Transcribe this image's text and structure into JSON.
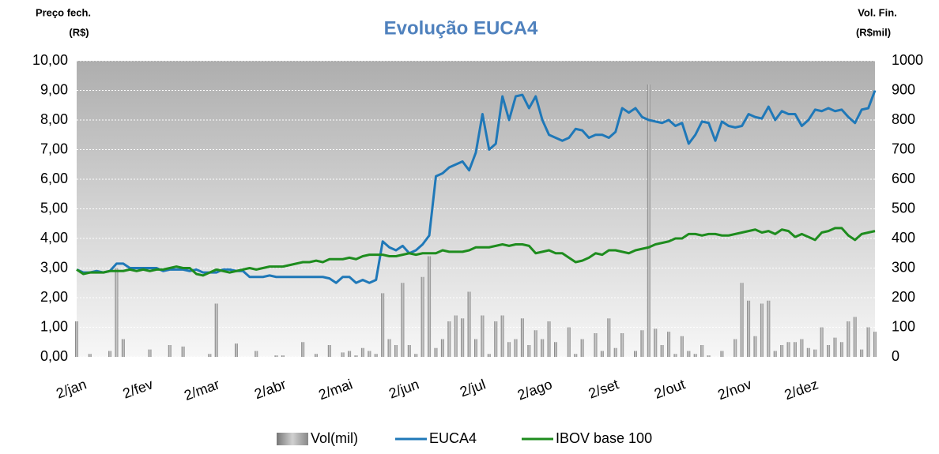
{
  "chart_data": {
    "type": "combo",
    "title": "Evolução EUCA4",
    "y_label": [
      "Preço fech.",
      "(R$)"
    ],
    "y2_label": [
      "Vol. Fin.",
      "(R$mil)"
    ],
    "categories": [
      "2/jan",
      null,
      null,
      null,
      null,
      null,
      null,
      null,
      null,
      null,
      "2/fev",
      null,
      null,
      null,
      null,
      null,
      null,
      null,
      null,
      null,
      "2/mar",
      null,
      null,
      null,
      null,
      null,
      null,
      null,
      null,
      null,
      "2/abr",
      null,
      null,
      null,
      null,
      null,
      null,
      null,
      null,
      null,
      "2/mai",
      null,
      null,
      null,
      null,
      null,
      null,
      null,
      null,
      null,
      "2/jun",
      null,
      null,
      null,
      null,
      null,
      null,
      null,
      null,
      null,
      "2/jul",
      null,
      null,
      null,
      null,
      null,
      null,
      null,
      null,
      null,
      "2/ago",
      null,
      null,
      null,
      null,
      null,
      null,
      null,
      null,
      null,
      "2/set",
      null,
      null,
      null,
      null,
      null,
      null,
      null,
      null,
      null,
      "2/out",
      null,
      null,
      null,
      null,
      null,
      null,
      null,
      null,
      null,
      "2/nov",
      null,
      null,
      null,
      null,
      null,
      null,
      null,
      null,
      null,
      "2/dez",
      null,
      null,
      null,
      null,
      null,
      null,
      null,
      null,
      null,
      null
    ],
    "series": [
      {
        "name": "Vol(mil)",
        "type": "bar",
        "axis": "y2",
        "color": "#9a9a9a",
        "values": [
          120,
          0,
          10,
          0,
          0,
          20,
          300,
          60,
          0,
          0,
          0,
          25,
          0,
          0,
          40,
          0,
          35,
          0,
          0,
          0,
          10,
          180,
          0,
          0,
          45,
          0,
          0,
          20,
          0,
          0,
          5,
          5,
          0,
          0,
          50,
          0,
          10,
          0,
          40,
          0,
          15,
          20,
          5,
          30,
          20,
          10,
          215,
          60,
          40,
          250,
          40,
          10,
          270,
          340,
          30,
          60,
          120,
          140,
          130,
          220,
          60,
          140,
          10,
          120,
          140,
          50,
          60,
          130,
          40,
          90,
          60,
          120,
          50,
          0,
          100,
          10,
          60,
          0,
          80,
          20,
          130,
          30,
          80,
          0,
          20,
          90,
          920,
          95,
          40,
          85,
          10,
          70,
          20,
          10,
          40,
          5,
          0,
          20,
          0,
          60,
          250,
          190,
          70,
          180,
          190,
          20,
          40,
          50,
          50,
          60,
          30,
          25,
          100,
          40,
          65,
          50,
          120,
          135,
          25,
          100,
          85
        ]
      },
      {
        "name": "EUCA4",
        "type": "line",
        "color": "#1f78b8",
        "values": [
          2.95,
          2.85,
          2.85,
          2.9,
          2.85,
          2.9,
          3.15,
          3.15,
          3.0,
          3.0,
          3.0,
          3.0,
          3.0,
          2.9,
          2.95,
          2.95,
          2.95,
          2.9,
          2.95,
          2.85,
          2.85,
          2.85,
          2.95,
          2.95,
          2.9,
          2.9,
          2.7,
          2.7,
          2.7,
          2.75,
          2.7,
          2.7,
          2.7,
          2.7,
          2.7,
          2.7,
          2.7,
          2.7,
          2.65,
          2.5,
          2.7,
          2.7,
          2.5,
          2.6,
          2.5,
          2.6,
          3.9,
          3.7,
          3.6,
          3.75,
          3.5,
          3.6,
          3.8,
          4.1,
          6.1,
          6.2,
          6.4,
          6.5,
          6.6,
          6.3,
          6.9,
          8.2,
          7.0,
          7.2,
          8.8,
          8.0,
          8.8,
          8.85,
          8.4,
          8.8,
          8.0,
          7.5,
          7.4,
          7.3,
          7.4,
          7.7,
          7.65,
          7.4,
          7.5,
          7.5,
          7.4,
          7.6,
          8.4,
          8.25,
          8.4,
          8.1,
          8.0,
          7.95,
          7.9,
          8.0,
          7.8,
          7.9,
          7.2,
          7.5,
          7.95,
          7.9,
          7.3,
          7.95,
          7.8,
          7.75,
          7.8,
          8.2,
          8.1,
          8.05,
          8.45,
          8.0,
          8.3,
          8.2,
          8.2,
          7.8,
          8.0,
          8.35,
          8.3,
          8.4,
          8.3,
          8.35,
          8.1,
          7.9,
          8.35,
          8.4,
          9.0
        ]
      },
      {
        "name": "IBOV base 100",
        "type": "line",
        "color": "#1e8c1e",
        "values": [
          2.95,
          2.8,
          2.85,
          2.85,
          2.85,
          2.9,
          2.9,
          2.9,
          2.95,
          2.9,
          2.95,
          2.9,
          2.95,
          2.95,
          3.0,
          3.05,
          3.0,
          3.0,
          2.8,
          2.75,
          2.85,
          2.95,
          2.9,
          2.85,
          2.9,
          2.95,
          3.0,
          2.95,
          3.0,
          3.05,
          3.05,
          3.05,
          3.1,
          3.15,
          3.2,
          3.2,
          3.25,
          3.2,
          3.3,
          3.3,
          3.3,
          3.35,
          3.3,
          3.4,
          3.45,
          3.45,
          3.45,
          3.4,
          3.4,
          3.45,
          3.5,
          3.45,
          3.5,
          3.5,
          3.5,
          3.6,
          3.55,
          3.55,
          3.55,
          3.6,
          3.7,
          3.7,
          3.7,
          3.75,
          3.8,
          3.75,
          3.8,
          3.8,
          3.75,
          3.5,
          3.55,
          3.6,
          3.5,
          3.5,
          3.35,
          3.2,
          3.25,
          3.35,
          3.5,
          3.45,
          3.6,
          3.6,
          3.55,
          3.5,
          3.6,
          3.65,
          3.7,
          3.8,
          3.85,
          3.9,
          4.0,
          4.0,
          4.15,
          4.15,
          4.1,
          4.15,
          4.15,
          4.1,
          4.1,
          4.15,
          4.2,
          4.25,
          4.3,
          4.2,
          4.25,
          4.15,
          4.3,
          4.25,
          4.05,
          4.15,
          4.05,
          3.95,
          4.2,
          4.25,
          4.35,
          4.35,
          4.1,
          3.95,
          4.15,
          4.2,
          4.25
        ]
      }
    ],
    "ylim": [
      0,
      10
    ],
    "yticks": [
      {
        "value": 0,
        "label": "0,00"
      },
      {
        "value": 1,
        "label": "1,00"
      },
      {
        "value": 2,
        "label": "2,00"
      },
      {
        "value": 3,
        "label": "3,00"
      },
      {
        "value": 4,
        "label": "4,00"
      },
      {
        "value": 5,
        "label": "5,00"
      },
      {
        "value": 6,
        "label": "6,00"
      },
      {
        "value": 7,
        "label": "7,00"
      },
      {
        "value": 8,
        "label": "8,00"
      },
      {
        "value": 9,
        "label": "9,00"
      },
      {
        "value": 10,
        "label": "10,00"
      }
    ],
    "y2lim": [
      0,
      1000
    ],
    "y2ticks": [
      0,
      100,
      200,
      300,
      400,
      500,
      600,
      700,
      800,
      900,
      1000
    ],
    "grid": true,
    "legend": "bottom"
  }
}
